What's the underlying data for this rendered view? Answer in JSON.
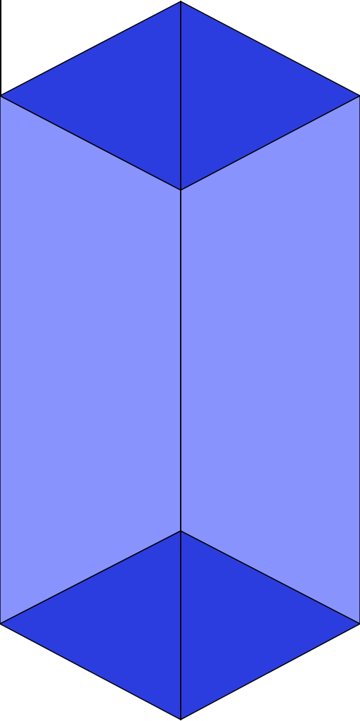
{
  "figure": {
    "shape": "isometric-prism",
    "colors": {
      "background": "#ffffff",
      "side_faces": "#8893fd",
      "top_face": "#2c3ddf",
      "bottom_face": "#2c3ddf",
      "edges": "#000000"
    }
  }
}
